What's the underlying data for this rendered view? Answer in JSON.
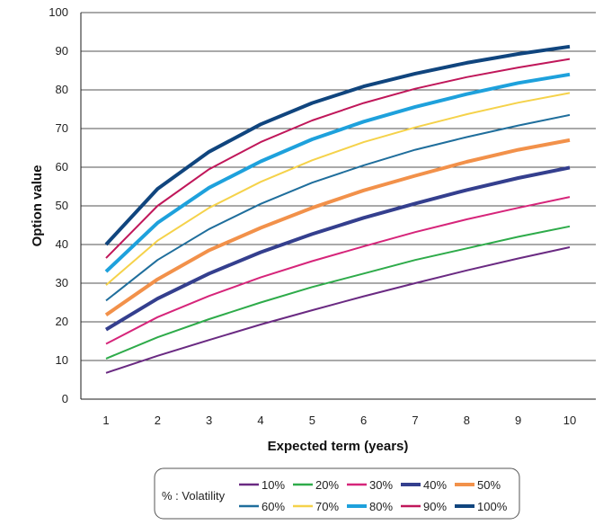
{
  "chart_data": {
    "type": "line",
    "title": "",
    "xlabel": "Expected term (years)",
    "ylabel": "Option value",
    "x": [
      1,
      2,
      3,
      4,
      5,
      6,
      7,
      8,
      9,
      10
    ],
    "xlim": [
      1,
      10
    ],
    "ylim": [
      0,
      100
    ],
    "yticks": [
      0,
      10,
      20,
      30,
      40,
      50,
      60,
      70,
      80,
      90,
      100
    ],
    "grid": "horizontal",
    "legend_title": "% : Volatility",
    "legend_position": "bottom",
    "series": [
      {
        "name": "10%",
        "color": "#6a2a82",
        "width": "thin",
        "values": [
          6.8,
          11.2,
          15.3,
          19.3,
          23.0,
          26.6,
          30.0,
          33.3,
          36.4,
          39.3
        ]
      },
      {
        "name": "20%",
        "color": "#2eab4a",
        "width": "thin",
        "values": [
          10.5,
          16.0,
          20.7,
          25.0,
          29.0,
          32.5,
          36.0,
          39.0,
          42.0,
          44.7
        ]
      },
      {
        "name": "30%",
        "color": "#d6257a",
        "width": "thin",
        "values": [
          14.3,
          21.2,
          26.7,
          31.5,
          35.7,
          39.5,
          43.2,
          46.5,
          49.5,
          52.3
        ]
      },
      {
        "name": "40%",
        "color": "#343f8e",
        "width": "thick",
        "values": [
          18.0,
          26.0,
          32.5,
          38.0,
          42.7,
          46.9,
          50.6,
          54.1,
          57.2,
          59.9
        ]
      },
      {
        "name": "50%",
        "color": "#f2914a",
        "width": "thick",
        "values": [
          21.8,
          31.0,
          38.5,
          44.3,
          49.5,
          54.0,
          57.8,
          61.4,
          64.5,
          67.0
        ]
      },
      {
        "name": "60%",
        "color": "#1f6e9c",
        "width": "thin",
        "values": [
          25.5,
          36.0,
          44.0,
          50.5,
          56.0,
          60.5,
          64.5,
          67.8,
          70.8,
          73.5
        ]
      },
      {
        "name": "70%",
        "color": "#f5d24a",
        "width": "thin",
        "values": [
          29.5,
          41.0,
          49.5,
          56.2,
          61.8,
          66.5,
          70.3,
          73.7,
          76.7,
          79.2
        ]
      },
      {
        "name": "80%",
        "color": "#1ea1dc",
        "width": "thick",
        "values": [
          33.0,
          45.6,
          54.7,
          61.5,
          67.2,
          71.8,
          75.6,
          78.9,
          81.8,
          84.0
        ]
      },
      {
        "name": "90%",
        "color": "#c0175a",
        "width": "thin",
        "values": [
          36.5,
          50.0,
          59.5,
          66.5,
          72.1,
          76.6,
          80.3,
          83.3,
          85.8,
          88.0
        ]
      },
      {
        "name": "100%",
        "color": "#10457e",
        "width": "thick",
        "values": [
          40.0,
          54.4,
          64.0,
          71.1,
          76.6,
          80.9,
          84.2,
          87.0,
          89.3,
          91.2
        ]
      }
    ]
  }
}
